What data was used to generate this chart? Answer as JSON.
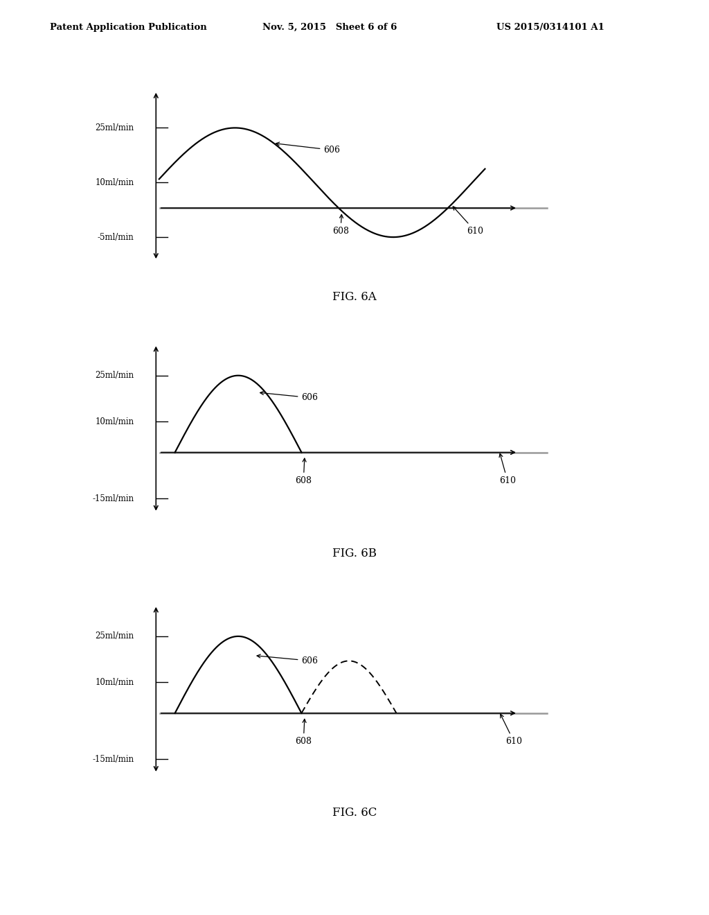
{
  "header_left": "Patent Application Publication",
  "header_mid": "Nov. 5, 2015   Sheet 6 of 6",
  "header_right": "US 2015/0314101 A1",
  "fig_labels": [
    "FIG. 6A",
    "FIG. 6B",
    "FIG. 6C"
  ],
  "fig6a": {
    "yticks_labels": [
      "25ml/min",
      "10ml/min",
      "-5ml/min"
    ],
    "yticks_vals": [
      25,
      10,
      -5
    ]
  },
  "fig6b": {
    "yticks_labels": [
      "25ml/min",
      "10ml/min",
      "-15ml/min"
    ],
    "yticks_vals": [
      25,
      10,
      -15
    ]
  },
  "fig6c": {
    "yticks_labels": [
      "25ml/min",
      "10ml/min",
      "-15ml/min"
    ],
    "yticks_vals": [
      25,
      10,
      -15
    ]
  },
  "bg_color": "#ffffff",
  "line_color": "#000000",
  "axis_color": "#000000",
  "gray_color": "#999999"
}
